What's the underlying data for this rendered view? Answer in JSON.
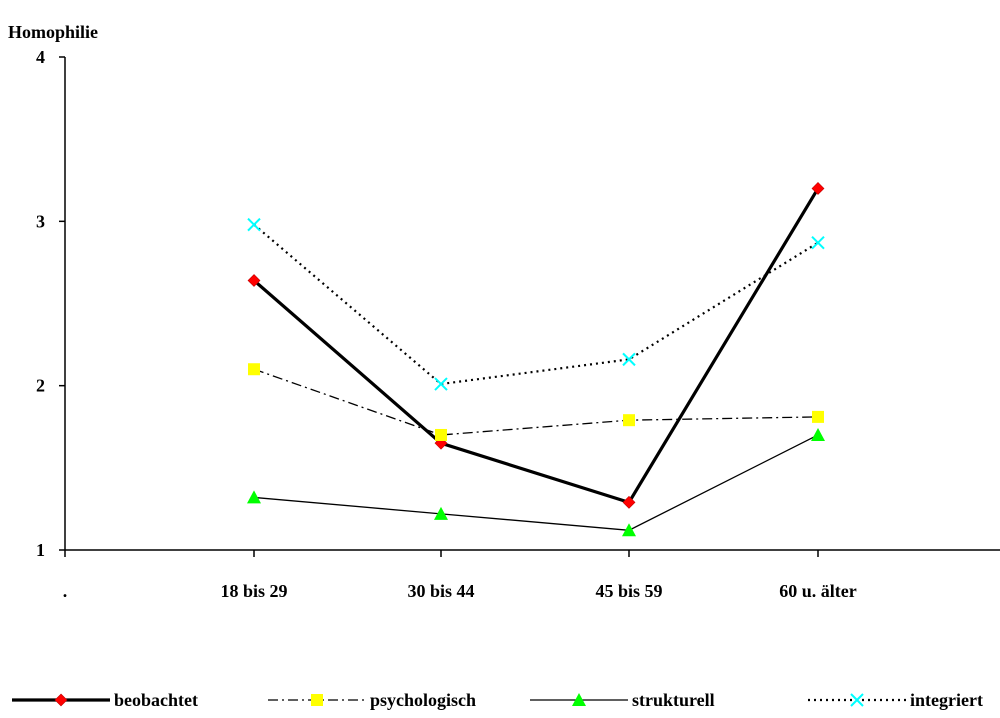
{
  "chart_data": {
    "type": "line",
    "ylabel": "Homophilie",
    "ylim": [
      1,
      4
    ],
    "yticks": [
      "1",
      "2",
      "3",
      "4"
    ],
    "categories": [
      ".",
      "18 bis 29",
      "30 bis 44",
      "45 bis 59",
      "60 u. älter"
    ],
    "series": [
      {
        "name": "beobachtet",
        "values": [
          null,
          2.64,
          1.65,
          1.29,
          3.2
        ],
        "color": "#ff0000",
        "line": "solid-thick",
        "marker": "diamond"
      },
      {
        "name": "psychologisch",
        "values": [
          null,
          2.1,
          1.7,
          1.79,
          1.81
        ],
        "color": "#ffff00",
        "line": "dash-dot",
        "marker": "square"
      },
      {
        "name": "strukturell",
        "values": [
          null,
          1.32,
          1.22,
          1.12,
          1.7
        ],
        "color": "#00ff00",
        "line": "solid-thin",
        "marker": "triangle"
      },
      {
        "name": "integriert",
        "values": [
          null,
          2.98,
          2.01,
          2.16,
          2.87
        ],
        "color": "#00ffff",
        "line": "dotted",
        "marker": "x"
      }
    ],
    "grid": false,
    "legend_position": "bottom"
  }
}
